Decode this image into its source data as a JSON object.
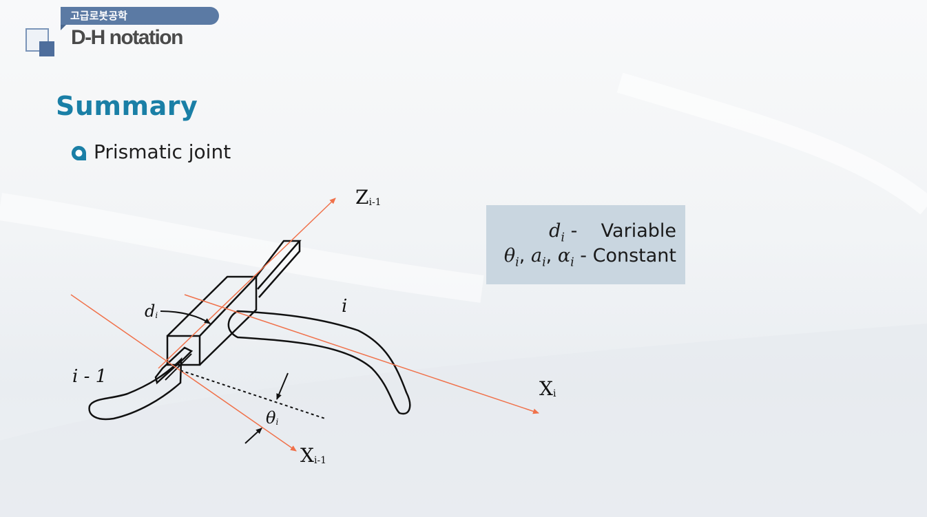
{
  "header": {
    "course": "고급로봇공학",
    "title": "D-H notation"
  },
  "section": {
    "heading": "Summary",
    "bullet": "Prismatic joint"
  },
  "diagram": {
    "labels": {
      "z_axis": "Z",
      "z_axis_sub": "i-1",
      "x_axis": "X",
      "x_axis_sub": "i",
      "x_prev_axis": "X",
      "x_prev_axis_sub": "i-1",
      "offset": "d",
      "offset_sub": "i",
      "angle": "θ",
      "angle_sub": "i",
      "link_i": "i",
      "link_prev": "i - 1"
    }
  },
  "info": {
    "line1_sym": "d",
    "line1_sub": "i",
    "line1_sep": " - ",
    "line1_text": "Variable",
    "line2_syms": [
      "θ",
      "a",
      "α"
    ],
    "line2_sub": "i",
    "line2_sep": " - ",
    "line2_text": "Constant"
  },
  "colors": {
    "heading": "#1a7fa6",
    "axis_red": "#f0714a",
    "header_tag": "#5b7aa4",
    "infobox": "#c9d6e0"
  }
}
